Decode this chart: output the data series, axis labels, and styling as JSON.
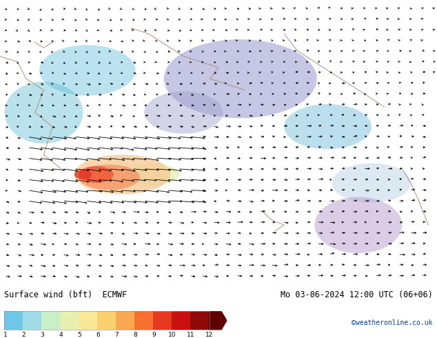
{
  "title_left": "Surface wind (bft)  ECMWF",
  "title_right": "Mo 03-06-2024 12:00 UTC (06+06)",
  "copyright": "©weatheronline.co.uk",
  "colorbar_label": "",
  "colorbar_ticks": [
    1,
    2,
    3,
    4,
    5,
    6,
    7,
    8,
    9,
    10,
    11,
    12
  ],
  "colorbar_colors": [
    "#6ec6e8",
    "#a0dce8",
    "#c8f0c8",
    "#e8f0b0",
    "#f8e898",
    "#f8d070",
    "#f8a850",
    "#f87030",
    "#e83820",
    "#c81010",
    "#900808",
    "#600000"
  ],
  "bg_color_main": "#70d8e8",
  "bg_color_purple": "#a090c8",
  "bg_color_green": "#90c890",
  "map_bg": "#70d8e8",
  "arrow_color": "#000000",
  "coastline_color": "#b09080",
  "bottom_bar_color": "#ffffff",
  "fig_width": 6.34,
  "fig_height": 4.9,
  "dpi": 100,
  "nx": 38,
  "ny": 26,
  "arrow_scale": 0.045
}
